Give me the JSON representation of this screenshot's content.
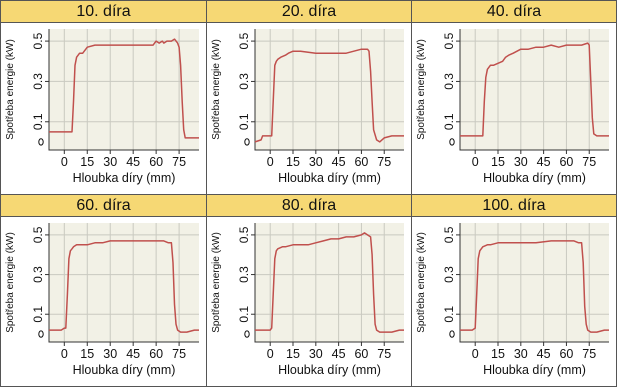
{
  "colors": {
    "header_bg": "#f6d874",
    "plot_bg": "#f2f1e6",
    "grid": "#c9c9c0",
    "line": "#c0504d",
    "border": "#555555"
  },
  "chart_data": [
    {
      "type": "line",
      "title": "10. díra",
      "xlabel": "Hloubka díry (mm)",
      "ylabel": "Spotřeba energie (kW)",
      "xticks": [
        "0",
        "15",
        "30",
        "45",
        "60",
        "75"
      ],
      "yticks": [
        "0.5",
        "0.3",
        "0.1"
      ],
      "xlim": [
        -10,
        88
      ],
      "ylim": [
        -0.04,
        0.56
      ],
      "grid": true,
      "x": [
        -10,
        0,
        5,
        6,
        7,
        8,
        9,
        10,
        12,
        15,
        20,
        25,
        30,
        35,
        40,
        45,
        50,
        55,
        58,
        60,
        62,
        64,
        65,
        67,
        70,
        72,
        74,
        75,
        76,
        77,
        78,
        79,
        80,
        82,
        85,
        88
      ],
      "y": [
        0.05,
        0.05,
        0.05,
        0.2,
        0.38,
        0.42,
        0.43,
        0.44,
        0.44,
        0.47,
        0.48,
        0.48,
        0.48,
        0.48,
        0.48,
        0.48,
        0.48,
        0.48,
        0.48,
        0.5,
        0.49,
        0.5,
        0.49,
        0.5,
        0.5,
        0.51,
        0.49,
        0.47,
        0.38,
        0.2,
        0.06,
        0.02,
        0.02,
        0.02,
        0.02,
        0.02
      ]
    },
    {
      "type": "line",
      "title": "20. díra",
      "xlabel": "Hloubka díry (mm)",
      "ylabel": "Spotřeba energie (kW)",
      "xticks": [
        "0",
        "15",
        "30",
        "45",
        "60",
        "75"
      ],
      "yticks": [
        "0.5",
        "0.3",
        "0.1"
      ],
      "xlim": [
        -10,
        88
      ],
      "ylim": [
        -0.04,
        0.56
      ],
      "grid": true,
      "x": [
        -10,
        -6,
        -5,
        -3,
        0,
        1,
        2,
        3,
        4,
        5,
        7,
        10,
        12,
        15,
        20,
        30,
        40,
        50,
        60,
        62,
        64,
        65,
        66,
        67,
        68,
        70,
        72,
        75,
        80,
        85,
        88
      ],
      "y": [
        0.0,
        0.01,
        0.03,
        0.03,
        0.03,
        0.03,
        0.2,
        0.38,
        0.4,
        0.41,
        0.42,
        0.43,
        0.44,
        0.45,
        0.45,
        0.44,
        0.44,
        0.44,
        0.46,
        0.46,
        0.46,
        0.45,
        0.35,
        0.2,
        0.06,
        0.01,
        0.0,
        0.02,
        0.03,
        0.03,
        0.03
      ]
    },
    {
      "type": "line",
      "title": "40. díra",
      "xlabel": "Hloubka díry (mm)",
      "ylabel": "Spotřeba energie (kW)",
      "xticks": [
        "0",
        "15",
        "30",
        "45",
        "60",
        "75"
      ],
      "yticks": [
        "0.5",
        "0.3",
        "0.1"
      ],
      "xlim": [
        -10,
        88
      ],
      "ylim": [
        -0.04,
        0.56
      ],
      "grid": true,
      "x": [
        -10,
        0,
        5,
        6,
        7,
        8,
        9,
        10,
        12,
        15,
        18,
        20,
        22,
        25,
        30,
        35,
        40,
        45,
        50,
        55,
        60,
        65,
        70,
        74,
        75,
        76,
        77,
        78,
        80,
        85,
        88
      ],
      "y": [
        0.03,
        0.03,
        0.03,
        0.2,
        0.32,
        0.36,
        0.37,
        0.38,
        0.38,
        0.39,
        0.4,
        0.42,
        0.43,
        0.44,
        0.46,
        0.46,
        0.47,
        0.47,
        0.48,
        0.47,
        0.48,
        0.48,
        0.48,
        0.49,
        0.48,
        0.3,
        0.12,
        0.04,
        0.03,
        0.03,
        0.03
      ]
    },
    {
      "type": "line",
      "title": "60. díra",
      "xlabel": "Hloubka díry (mm)",
      "ylabel": "Spotřeba energie (kW)",
      "xticks": [
        "0",
        "15",
        "30",
        "45",
        "60",
        "75"
      ],
      "yticks": [
        "0.5",
        "0.3",
        "0.1"
      ],
      "xlim": [
        -10,
        88
      ],
      "ylim": [
        -0.04,
        0.56
      ],
      "grid": true,
      "x": [
        -10,
        -5,
        -2,
        0,
        1,
        2,
        3,
        4,
        5,
        6,
        8,
        10,
        15,
        20,
        25,
        30,
        35,
        40,
        50,
        60,
        65,
        68,
        70,
        71,
        72,
        73,
        74,
        76,
        80,
        85,
        88
      ],
      "y": [
        0.02,
        0.02,
        0.02,
        0.03,
        0.03,
        0.2,
        0.38,
        0.42,
        0.43,
        0.44,
        0.45,
        0.45,
        0.45,
        0.46,
        0.46,
        0.47,
        0.47,
        0.47,
        0.47,
        0.47,
        0.47,
        0.46,
        0.46,
        0.36,
        0.15,
        0.05,
        0.02,
        0.01,
        0.01,
        0.02,
        0.02
      ]
    },
    {
      "type": "line",
      "title": "80. díra",
      "xlabel": "Hloubka díry (mm)",
      "ylabel": "Spotřeba energie (kW)",
      "xticks": [
        "0",
        "15",
        "30",
        "45",
        "60",
        "75"
      ],
      "yticks": [
        "0.5",
        "0.3",
        "0.1"
      ],
      "xlim": [
        -10,
        88
      ],
      "ylim": [
        -0.04,
        0.56
      ],
      "grid": true,
      "x": [
        -10,
        -5,
        0,
        1,
        2,
        3,
        4,
        5,
        8,
        10,
        15,
        20,
        25,
        30,
        35,
        40,
        45,
        50,
        55,
        60,
        62,
        64,
        66,
        67,
        68,
        69,
        70,
        72,
        75,
        80,
        85,
        88
      ],
      "y": [
        0.02,
        0.02,
        0.02,
        0.03,
        0.2,
        0.38,
        0.42,
        0.43,
        0.44,
        0.44,
        0.45,
        0.45,
        0.45,
        0.46,
        0.47,
        0.48,
        0.48,
        0.49,
        0.49,
        0.5,
        0.51,
        0.5,
        0.49,
        0.4,
        0.2,
        0.05,
        0.02,
        0.01,
        0.01,
        0.01,
        0.02,
        0.02
      ]
    },
    {
      "type": "line",
      "title": "100. díra",
      "xlabel": "Hloubka díry (mm)",
      "ylabel": "Spotřeba energie (kW)",
      "xticks": [
        "0",
        "15",
        "30",
        "45",
        "60",
        "75"
      ],
      "yticks": [
        "0.5",
        "0.3",
        "0.1"
      ],
      "xlim": [
        -10,
        88
      ],
      "ylim": [
        -0.04,
        0.56
      ],
      "grid": true,
      "x": [
        -10,
        -5,
        -2,
        0,
        1,
        2,
        3,
        4,
        5,
        8,
        10,
        15,
        20,
        25,
        30,
        40,
        50,
        60,
        65,
        68,
        70,
        71,
        72,
        73,
        74,
        76,
        80,
        85,
        88
      ],
      "y": [
        0.02,
        0.02,
        0.02,
        0.03,
        0.2,
        0.38,
        0.42,
        0.43,
        0.44,
        0.45,
        0.45,
        0.46,
        0.46,
        0.46,
        0.46,
        0.46,
        0.47,
        0.47,
        0.47,
        0.46,
        0.46,
        0.36,
        0.14,
        0.05,
        0.02,
        0.01,
        0.01,
        0.02,
        0.02
      ]
    }
  ]
}
